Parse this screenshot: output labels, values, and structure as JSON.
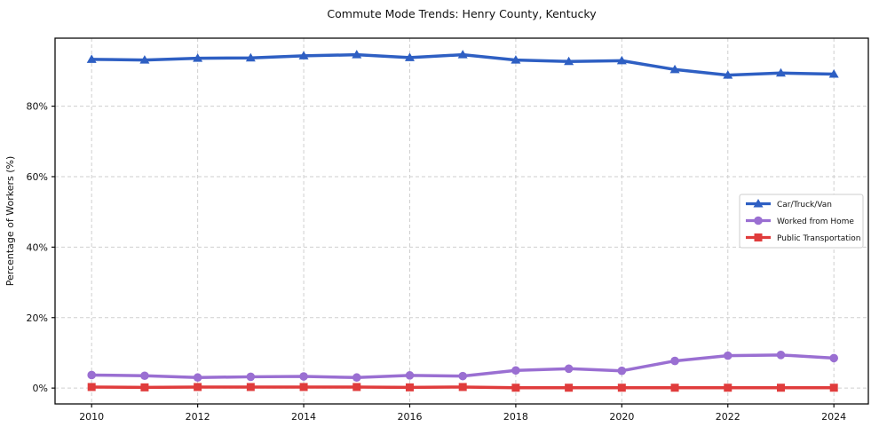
{
  "chart_data": {
    "type": "line",
    "title": "Commute Mode Trends: Henry County, Kentucky",
    "xlabel": "",
    "ylabel": "Percentage of Workers (%)",
    "x": [
      2010,
      2011,
      2012,
      2013,
      2014,
      2015,
      2016,
      2017,
      2018,
      2019,
      2020,
      2021,
      2022,
      2023,
      2024
    ],
    "xticks": [
      2010,
      2012,
      2014,
      2016,
      2018,
      2020,
      2022,
      2024
    ],
    "xtick_labels": [
      "2010",
      "2012",
      "2014",
      "2016",
      "2018",
      "2020",
      "2022",
      "2024"
    ],
    "yticks": [
      0,
      20,
      40,
      60,
      80
    ],
    "ytick_labels": [
      "0%",
      "20%",
      "40%",
      "60%",
      "80%"
    ],
    "xlim": [
      2009.31,
      2024.65
    ],
    "ylim": [
      -4.5,
      99.3
    ],
    "grid": true,
    "grid_color": "#cfcfcf",
    "spine_color": "#0a0a0a",
    "legend": {
      "position": "center-right",
      "entries": [
        "Car/Truck/Van",
        "Worked from Home",
        "Public Transportation"
      ],
      "border_color": "#cccccc",
      "background": "#ffffff"
    },
    "series": [
      {
        "name": "Car/Truck/Van",
        "color": "#2e5fc3",
        "marker": "triangle-up",
        "values": [
          93.3,
          93.1,
          93.6,
          93.7,
          94.3,
          94.6,
          93.8,
          94.6,
          93.1,
          92.7,
          92.9,
          90.4,
          88.8,
          89.4,
          89.1
        ]
      },
      {
        "name": "Worked from Home",
        "color": "#9a6fd2",
        "marker": "circle",
        "values": [
          3.7,
          3.5,
          3.0,
          3.2,
          3.3,
          3.0,
          3.6,
          3.4,
          5.0,
          5.5,
          4.9,
          7.7,
          9.2,
          9.4,
          8.5
        ]
      },
      {
        "name": "Public Transportation",
        "color": "#e03c3c",
        "marker": "square",
        "values": [
          0.3,
          0.2,
          0.3,
          0.3,
          0.3,
          0.3,
          0.2,
          0.3,
          0.1,
          0.1,
          0.1,
          0.1,
          0.1,
          0.1,
          0.1
        ]
      }
    ]
  }
}
